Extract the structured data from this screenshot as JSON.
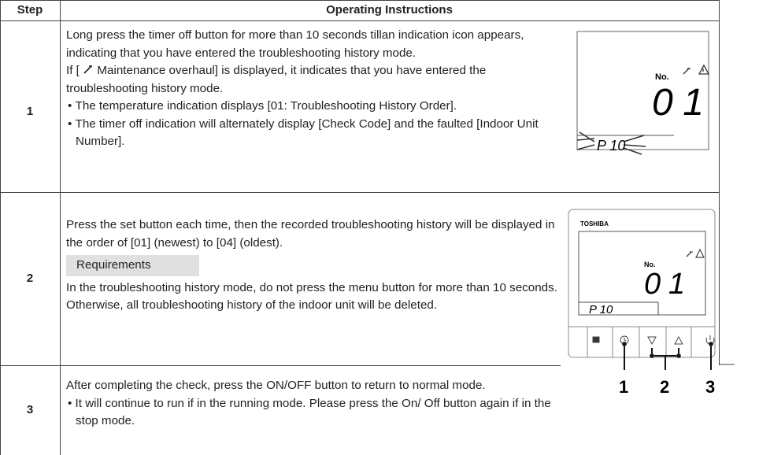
{
  "header": {
    "step": "Step",
    "instructions": "Operating Instructions"
  },
  "rows": [
    {
      "step": "1",
      "paragraphs": [
        "Long press the timer off button for more than 10 seconds tillan indication icon appears, indicating that you have entered the troubleshooting history mode."
      ],
      "maintenance": {
        "prefix": "If [",
        "suffix": "Maintenance overhaul] is displayed, it indicates that you have entered the troubleshooting history mode."
      },
      "bullets": [
        "The temperature indication displays [01: Troubleshooting History Order].",
        "The timer off indication will alternately display [Check Code] and the faulted [Indoor Unit Number]."
      ],
      "display": {
        "no": "No.",
        "number": "01",
        "code": "P 10"
      }
    },
    {
      "step": "2",
      "paragraphs": [
        "Press the set button each time, then the recorded troubleshooting history will be displayed in the order of [01] (newest) to [04] (oldest)."
      ],
      "requirements": "Requirements",
      "note": "In the troubleshooting history mode, do not press the menu button for more than 10 seconds. Otherwise, all troubleshooting history of the indoor unit will be deleted.",
      "remote": {
        "brand": "TOSHIBA",
        "no": "No.",
        "number": "01",
        "code": "P 10",
        "buttons": [
          "1",
          "2",
          "3"
        ]
      }
    },
    {
      "step": "3",
      "paragraphs": [
        "After completing the check, press the ON/OFF button to return to normal mode."
      ],
      "bullets": [
        "It will continue to run if in the running mode. Please press the On/ Off button again if in the stop mode."
      ]
    }
  ]
}
